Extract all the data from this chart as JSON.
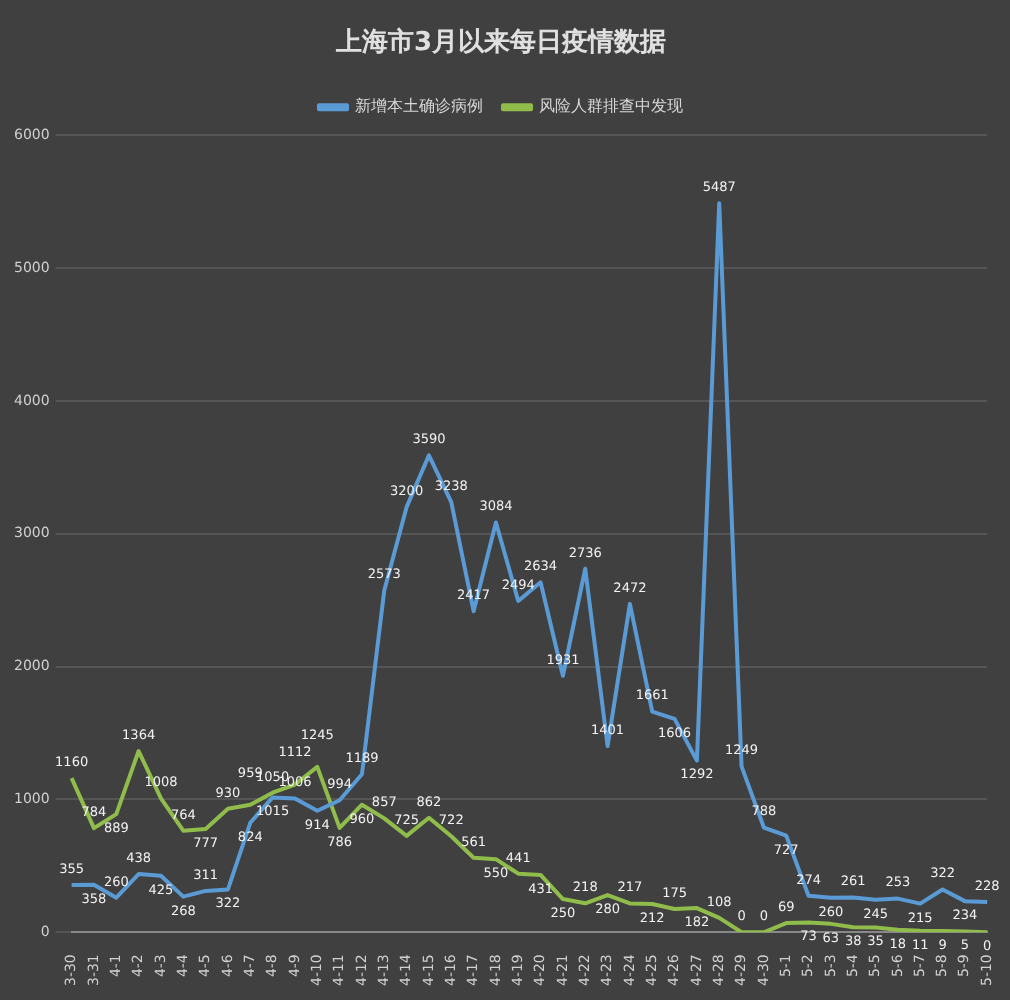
{
  "chart_data": {
    "type": "line",
    "title": "上海市3月以来每日疫情数据",
    "categories": [
      "3-30",
      "3-31",
      "4-1",
      "4-2",
      "4-3",
      "4-4",
      "4-5",
      "4-6",
      "4-7",
      "4-8",
      "4-9",
      "4-10",
      "4-11",
      "4-12",
      "4-13",
      "4-14",
      "4-15",
      "4-16",
      "4-17",
      "4-18",
      "4-19",
      "4-20",
      "4-21",
      "4-22",
      "4-23",
      "4-24",
      "4-25",
      "4-26",
      "4-27",
      "4-28",
      "4-29",
      "4-30",
      "5-1",
      "5-2",
      "5-3",
      "5-4",
      "5-5",
      "5-6",
      "5-7",
      "5-8",
      "5-9",
      "5-10"
    ],
    "series": [
      {
        "name": "新增本土确诊病例",
        "color": "#5b9bd5",
        "values": [
          355,
          358,
          260,
          438,
          425,
          268,
          311,
          322,
          824,
          1015,
          1006,
          914,
          994,
          1189,
          2573,
          3200,
          3590,
          3238,
          2417,
          3084,
          2494,
          2634,
          1931,
          2736,
          1401,
          2472,
          1661,
          1606,
          1292,
          5487,
          1249,
          788,
          727,
          274,
          260,
          261,
          245,
          253,
          215,
          322,
          234,
          228
        ]
      },
      {
        "name": "风险人群排查中发现",
        "color": "#8fbc4a",
        "values": [
          1160,
          784,
          889,
          1364,
          1008,
          764,
          777,
          930,
          959,
          1050,
          1112,
          1245,
          786,
          960,
          857,
          725,
          862,
          722,
          561,
          550,
          441,
          431,
          250,
          218,
          280,
          217,
          212,
          175,
          182,
          108,
          0,
          0,
          69,
          73,
          63,
          38,
          35,
          18,
          11,
          9,
          5,
          0
        ]
      }
    ],
    "ylim": [
      0,
      6000
    ],
    "yticks": [
      0,
      1000,
      2000,
      3000,
      4000,
      5000,
      6000
    ],
    "grid": "y",
    "legend": "top",
    "data_labels": true,
    "marker": "none",
    "line_style": "solid"
  }
}
